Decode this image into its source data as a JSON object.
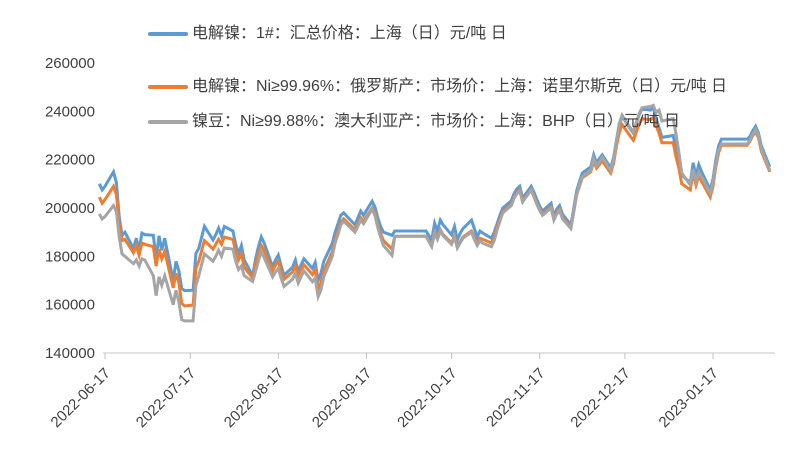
{
  "colors": {
    "background": "#FFFFFF",
    "axis_line": "#D9D9D9",
    "tick_mark": "#BFBFBF",
    "label_text": "#404040"
  },
  "chart_data": {
    "type": "line",
    "title": "",
    "unit": "元/吨",
    "legend_position": "top-left",
    "grid": false,
    "y_axis": {
      "min": 140000,
      "max": 260000,
      "ticks": [
        260000,
        240000,
        220000,
        200000,
        180000,
        160000,
        140000
      ]
    },
    "x_axis": {
      "tick_labels": [
        "2022-06-17",
        "2022-07-17",
        "2022-08-17",
        "2022-09-17",
        "2022-10-17",
        "2022-11-17",
        "2022-12-17",
        "2023-01-17"
      ],
      "start": "2022-06-15",
      "end": "2023-02-06"
    },
    "series": [
      {
        "name": "电解镍：1#：汇总价格：上海（日）元/吨 日",
        "color": "#5B9BD5"
      },
      {
        "name": "电解镍：Ni≥99.96%：俄罗斯产：市场价：上海：诺里尔斯克（日）元/吨 日",
        "color": "#ED7D31"
      },
      {
        "name": "镍豆：Ni≥99.88%：澳大利亚产：市场价：上海：BHP（日）元/吨 日",
        "color": "#A5A5A5"
      }
    ],
    "points": [
      [
        "2022-06-15",
        210000,
        204500,
        197500
      ],
      [
        "2022-06-16",
        207500,
        202000,
        195500
      ],
      [
        "2022-06-17",
        209000,
        203500,
        196500
      ],
      [
        "2022-06-20",
        215000,
        209000,
        201000
      ],
      [
        "2022-06-21",
        210500,
        205500,
        198500
      ],
      [
        "2022-06-22",
        196500,
        193500,
        188000
      ],
      [
        "2022-06-23",
        188700,
        186500,
        181000
      ],
      [
        "2022-06-24",
        190000,
        187000,
        180000
      ],
      [
        "2022-06-27",
        183300,
        181500,
        177000
      ],
      [
        "2022-06-28",
        187500,
        184500,
        178500
      ],
      [
        "2022-06-29",
        182500,
        180500,
        176000
      ],
      [
        "2022-06-30",
        189600,
        185500,
        179000
      ],
      [
        "2022-07-01",
        189000,
        185000,
        178500
      ],
      [
        "2022-07-04",
        188700,
        184000,
        172000
      ],
      [
        "2022-07-05",
        179000,
        176000,
        163700
      ],
      [
        "2022-07-06",
        188500,
        183000,
        171500
      ],
      [
        "2022-07-07",
        182500,
        179000,
        168000
      ],
      [
        "2022-07-08",
        187500,
        182000,
        172000
      ],
      [
        "2022-07-11",
        170000,
        167000,
        160000
      ],
      [
        "2022-07-12",
        177900,
        173000,
        166000
      ],
      [
        "2022-07-13",
        174000,
        169000,
        161000
      ],
      [
        "2022-07-14",
        166700,
        160500,
        153800
      ],
      [
        "2022-07-15",
        165800,
        159500,
        153300
      ],
      [
        "2022-07-18",
        166000,
        159800,
        153300
      ],
      [
        "2022-07-19",
        181200,
        175000,
        168000
      ],
      [
        "2022-07-20",
        183300,
        178000,
        172000
      ],
      [
        "2022-07-22",
        192400,
        186500,
        181000
      ],
      [
        "2022-07-25",
        186800,
        183000,
        178000
      ],
      [
        "2022-07-26",
        189000,
        185000,
        180000
      ],
      [
        "2022-07-27",
        191700,
        187000,
        182500
      ],
      [
        "2022-07-28",
        188500,
        185000,
        180000
      ],
      [
        "2022-07-29",
        192400,
        188000,
        183500
      ],
      [
        "2022-08-01",
        190500,
        187000,
        183000
      ],
      [
        "2022-08-02",
        185000,
        182000,
        178000
      ],
      [
        "2022-08-03",
        181000,
        178500,
        174500
      ],
      [
        "2022-08-04",
        184500,
        181000,
        176000
      ],
      [
        "2022-08-05",
        178500,
        175500,
        172000
      ],
      [
        "2022-08-08",
        172000,
        171000,
        169600
      ],
      [
        "2022-08-09",
        179000,
        177000,
        174000
      ],
      [
        "2022-08-10",
        184000,
        181000,
        178000
      ],
      [
        "2022-08-11",
        188000,
        184500,
        182000
      ],
      [
        "2022-08-12",
        185500,
        182500,
        179500
      ],
      [
        "2022-08-15",
        175700,
        174000,
        171500
      ],
      [
        "2022-08-16",
        178500,
        176500,
        173500
      ],
      [
        "2022-08-17",
        180500,
        178000,
        175000
      ],
      [
        "2022-08-18",
        176000,
        174000,
        171000
      ],
      [
        "2022-08-19",
        172200,
        170500,
        167500
      ],
      [
        "2022-08-22",
        175500,
        173500,
        170500
      ],
      [
        "2022-08-23",
        178500,
        176000,
        173000
      ],
      [
        "2022-08-24",
        173600,
        172000,
        169000
      ],
      [
        "2022-08-25",
        176500,
        174500,
        171500
      ],
      [
        "2022-08-26",
        179000,
        176500,
        174000
      ],
      [
        "2022-08-29",
        175000,
        172500,
        169500
      ],
      [
        "2022-08-30",
        177500,
        174500,
        171000
      ],
      [
        "2022-08-31",
        170000,
        166500,
        163300
      ],
      [
        "2022-09-01",
        173000,
        169000,
        166000
      ],
      [
        "2022-09-02",
        178000,
        174000,
        171500
      ],
      [
        "2022-09-05",
        185400,
        182000,
        180000
      ],
      [
        "2022-09-06",
        190000,
        187000,
        185500
      ],
      [
        "2022-09-07",
        193500,
        190500,
        189000
      ],
      [
        "2022-09-08",
        197000,
        194000,
        193000
      ],
      [
        "2022-09-09",
        198000,
        195500,
        194500
      ],
      [
        "2022-09-13",
        193000,
        191000,
        190000
      ],
      [
        "2022-09-14",
        196000,
        193500,
        192500
      ],
      [
        "2022-09-15",
        198700,
        196000,
        195000
      ],
      [
        "2022-09-16",
        197000,
        194500,
        193500
      ],
      [
        "2022-09-19",
        202800,
        200000,
        199500
      ],
      [
        "2022-09-20",
        200500,
        198000,
        197000
      ],
      [
        "2022-09-21",
        196000,
        193000,
        192000
      ],
      [
        "2022-09-22",
        192400,
        189500,
        188000
      ],
      [
        "2022-09-23",
        190000,
        186500,
        184500
      ],
      [
        "2022-09-26",
        188700,
        183000,
        180400
      ],
      [
        "2022-09-27",
        190500,
        188300,
        188300
      ],
      [
        "2022-09-28",
        190500,
        188300,
        188300
      ],
      [
        "2022-10-08",
        190500,
        188300,
        188300
      ],
      [
        "2022-10-10",
        186800,
        184500,
        184000
      ],
      [
        "2022-10-11",
        193700,
        190000,
        189500
      ],
      [
        "2022-10-12",
        190500,
        187500,
        187000
      ],
      [
        "2022-10-13",
        195000,
        191000,
        190500
      ],
      [
        "2022-10-14",
        193000,
        189000,
        188500
      ],
      [
        "2022-10-17",
        188900,
        185500,
        185000
      ],
      [
        "2022-10-18",
        192400,
        188500,
        188000
      ],
      [
        "2022-10-19",
        186800,
        184000,
        183500
      ],
      [
        "2022-10-20",
        189500,
        186000,
        185500
      ],
      [
        "2022-10-21",
        191500,
        188000,
        187500
      ],
      [
        "2022-10-24",
        195000,
        190500,
        190000
      ],
      [
        "2022-10-25",
        191500,
        188000,
        187000
      ],
      [
        "2022-10-26",
        188000,
        185500,
        184500
      ],
      [
        "2022-10-27",
        190500,
        187500,
        186500
      ],
      [
        "2022-10-28",
        189600,
        187000,
        185400
      ],
      [
        "2022-10-31",
        187500,
        185500,
        184000
      ],
      [
        "2022-11-01",
        190000,
        188000,
        186500
      ],
      [
        "2022-11-02",
        193500,
        192000,
        191000
      ],
      [
        "2022-11-03",
        197000,
        195500,
        194500
      ],
      [
        "2022-11-04",
        200000,
        198500,
        198000
      ],
      [
        "2022-11-07",
        203000,
        201500,
        201000
      ],
      [
        "2022-11-08",
        206000,
        204500,
        204000
      ],
      [
        "2022-11-09",
        208000,
        206500,
        206000
      ],
      [
        "2022-11-10",
        209000,
        207500,
        207000
      ],
      [
        "2022-11-11",
        204000,
        203000,
        202500
      ],
      [
        "2022-11-14",
        209000,
        207500,
        207500
      ],
      [
        "2022-11-15",
        206500,
        205000,
        204500
      ],
      [
        "2022-11-16",
        203500,
        202000,
        201500
      ],
      [
        "2022-11-17",
        200800,
        199500,
        199000
      ],
      [
        "2022-11-18",
        198700,
        197500,
        197000
      ],
      [
        "2022-11-21",
        202000,
        200500,
        200000
      ],
      [
        "2022-11-22",
        196600,
        195500,
        195000
      ],
      [
        "2022-11-23",
        199500,
        198000,
        197500
      ],
      [
        "2022-11-24",
        201000,
        199500,
        199000
      ],
      [
        "2022-11-25",
        197500,
        196000,
        195500
      ],
      [
        "2022-11-28",
        193000,
        192000,
        191500
      ],
      [
        "2022-11-29",
        200000,
        198500,
        198500
      ],
      [
        "2022-11-30",
        207000,
        205500,
        205500
      ],
      [
        "2022-12-01",
        211000,
        209000,
        209500
      ],
      [
        "2022-12-02",
        214500,
        212500,
        213000
      ],
      [
        "2022-12-05",
        217000,
        215000,
        215500
      ],
      [
        "2022-12-06",
        222000,
        219500,
        220500
      ],
      [
        "2022-12-07",
        218700,
        216500,
        217500
      ],
      [
        "2022-12-08",
        220500,
        218000,
        219000
      ],
      [
        "2022-12-09",
        222000,
        219500,
        221000
      ],
      [
        "2022-12-12",
        216600,
        214500,
        215500
      ],
      [
        "2022-12-13",
        221000,
        218500,
        220000
      ],
      [
        "2022-12-14",
        228000,
        225500,
        227500
      ],
      [
        "2022-12-15",
        234000,
        231000,
        235000
      ],
      [
        "2022-12-16",
        238000,
        234500,
        238500
      ],
      [
        "2022-12-19",
        232500,
        229500,
        233000
      ],
      [
        "2022-12-20",
        231000,
        228000,
        231500
      ],
      [
        "2022-12-21",
        235000,
        231500,
        235500
      ],
      [
        "2022-12-22",
        238500,
        234500,
        239000
      ],
      [
        "2022-12-23",
        241000,
        237000,
        241500
      ],
      [
        "2022-12-26",
        240500,
        236500,
        242000
      ],
      [
        "2022-12-27",
        241700,
        237500,
        242500
      ],
      [
        "2022-12-28",
        237000,
        234000,
        239500
      ],
      [
        "2022-12-29",
        233300,
        231000,
        240500
      ],
      [
        "2022-12-30",
        229200,
        227000,
        236000
      ],
      [
        "2023-01-03",
        230000,
        227000,
        237000
      ],
      [
        "2023-01-04",
        224000,
        221000,
        230500
      ],
      [
        "2023-01-05",
        220000,
        216500,
        223000
      ],
      [
        "2023-01-06",
        213700,
        210000,
        214500
      ],
      [
        "2023-01-09",
        210400,
        207500,
        209500
      ],
      [
        "2023-01-10",
        218700,
        214500,
        216000
      ],
      [
        "2023-01-11",
        213300,
        209500,
        211000
      ],
      [
        "2023-01-12",
        217900,
        213500,
        215000
      ],
      [
        "2023-01-13",
        215000,
        211000,
        213000
      ],
      [
        "2023-01-16",
        207500,
        204500,
        206000
      ],
      [
        "2023-01-17",
        212000,
        209000,
        210500
      ],
      [
        "2023-01-18",
        220000,
        217000,
        218500
      ],
      [
        "2023-01-19",
        225800,
        223000,
        224000
      ],
      [
        "2023-01-20",
        228500,
        226000,
        226500
      ],
      [
        "2023-01-29",
        228500,
        226000,
        226500
      ],
      [
        "2023-01-30",
        229500,
        227500,
        228000
      ],
      [
        "2023-01-31",
        232000,
        230000,
        230500
      ],
      [
        "2023-02-01",
        233800,
        231500,
        232500
      ],
      [
        "2023-02-02",
        231000,
        229000,
        230000
      ],
      [
        "2023-02-03",
        225800,
        223500,
        224500
      ],
      [
        "2023-02-06",
        217000,
        215000,
        215500
      ]
    ]
  }
}
